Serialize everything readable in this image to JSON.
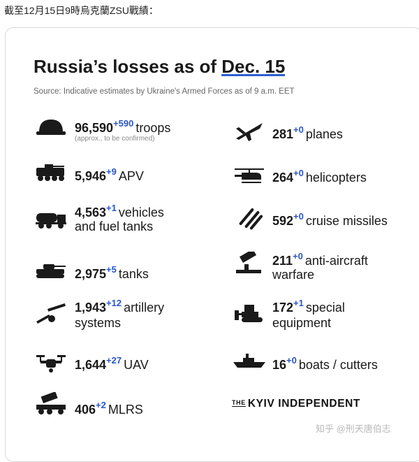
{
  "caption": "截至12月15日9時烏克蘭ZSU戰績：",
  "card": {
    "title_prefix": "Russia’s losses as of ",
    "title_date": "Dec. 15",
    "source": "Source: Indicative estimates by Ukraine's Armed Forces as of 9 a.m. EET",
    "left_column": [
      {
        "icon": "helmet-icon",
        "value": "96,590",
        "delta": "+590",
        "label": "troops",
        "label2": "",
        "note": "(approx., to be confirmed)"
      },
      {
        "icon": "apv-icon",
        "value": "5,946",
        "delta": "+9",
        "label": "APV",
        "label2": ""
      },
      {
        "icon": "fuel-truck-icon",
        "value": "4,563",
        "delta": "+1",
        "label": "vehicles",
        "label2": "and fuel tanks"
      },
      {
        "icon": "tank-icon",
        "value": "2,975",
        "delta": "+5",
        "label": "tanks",
        "label2": ""
      },
      {
        "icon": "artillery-icon",
        "value": "1,943",
        "delta": "+12",
        "label": "artillery",
        "label2": "systems"
      },
      {
        "icon": "drone-icon",
        "value": "1,644",
        "delta": "+27",
        "label": "UAV",
        "label2": ""
      },
      {
        "icon": "mlrs-icon",
        "value": "406",
        "delta": "+2",
        "label": "MLRS",
        "label2": ""
      }
    ],
    "right_column": [
      {
        "icon": "plane-icon",
        "value": "281",
        "delta": "+0",
        "label": "planes",
        "label2": ""
      },
      {
        "icon": "helicopter-icon",
        "value": "264",
        "delta": "+0",
        "label": "helicopters",
        "label2": ""
      },
      {
        "icon": "missile-icon",
        "value": "592",
        "delta": "+0",
        "label": "cruise missiles",
        "label2": ""
      },
      {
        "icon": "anti-aircraft-icon",
        "value": "211",
        "delta": "+0",
        "label": "anti-aircraft",
        "label2": "warfare"
      },
      {
        "icon": "bulldozer-icon",
        "value": "172",
        "delta": "+1",
        "label": "special",
        "label2": "equipment"
      },
      {
        "icon": "boat-icon",
        "value": "16",
        "delta": "+0",
        "label": "boats / cutters",
        "label2": ""
      }
    ],
    "brand_prefix": "THE",
    "brand_name": "KYIV INDEPENDENT"
  },
  "watermark": "知乎 @刑天唐伯志",
  "colors": {
    "accent": "#2f5fd0",
    "delta": "#2a55c8",
    "text": "#1a1a1a"
  }
}
